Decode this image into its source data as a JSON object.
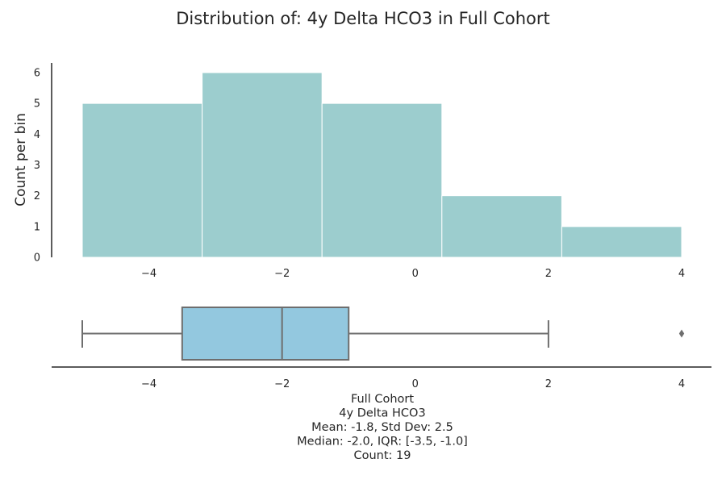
{
  "chart_data": [
    {
      "type": "histogram",
      "title": "Distribution of: 4y Delta HCO3 in Full Cohort",
      "xlabel": "",
      "ylabel": "Count per bin",
      "xlim": [
        -5.5,
        4.4
      ],
      "ylim": [
        0,
        6.3
      ],
      "xticks": [
        -4,
        -2,
        0,
        2,
        4
      ],
      "xtick_labels": [
        "−4",
        "−2",
        "0",
        "2",
        "4"
      ],
      "yticks": [
        0,
        1,
        2,
        3,
        4,
        5,
        6
      ],
      "ytick_labels": [
        "0",
        "1",
        "2",
        "3",
        "4",
        "5",
        "6"
      ],
      "bin_edges": [
        -5.0,
        -3.2,
        -1.4,
        0.4,
        2.2,
        4.0
      ],
      "counts": [
        5,
        6,
        5,
        2,
        1
      ],
      "color": "#9ccdce",
      "grid": false
    },
    {
      "type": "boxplot",
      "whisker_low": -5.0,
      "q1": -3.5,
      "median": -2.0,
      "q3": -1.0,
      "whisker_high": 2.0,
      "outliers": [
        4.0
      ],
      "xticks": [
        -4,
        -2,
        0,
        2,
        4
      ],
      "xtick_labels": [
        "−4",
        "−2",
        "0",
        "2",
        "4"
      ],
      "color": "#93c8df",
      "caption": [
        "Full Cohort",
        "4y Delta HCO3",
        "Mean: -1.8, Std Dev: 2.5",
        "Median: -2.0, IQR: [-3.5, -1.0]",
        "Count: 19"
      ]
    }
  ]
}
